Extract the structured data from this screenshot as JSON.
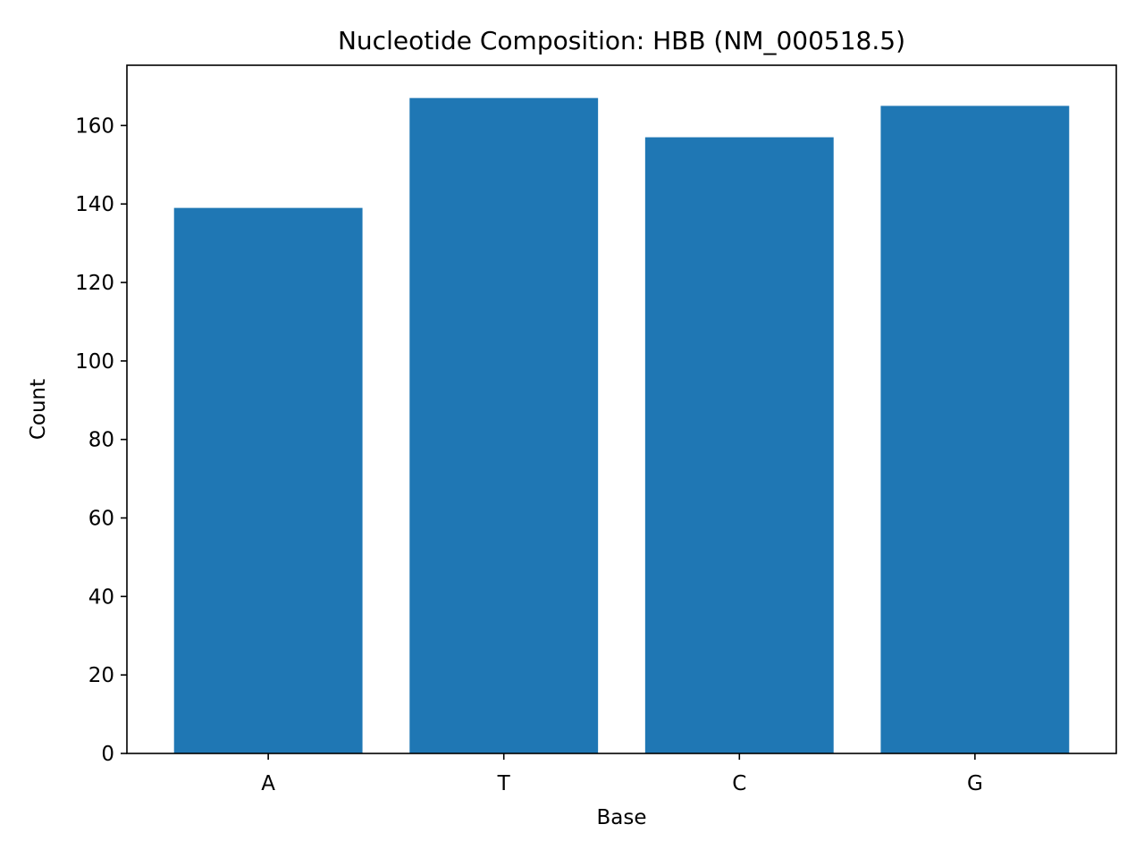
{
  "chart_data": {
    "type": "bar",
    "title": "Nucleotide Composition: HBB (NM_000518.5)",
    "xlabel": "Base",
    "ylabel": "Count",
    "categories": [
      "A",
      "T",
      "C",
      "G"
    ],
    "values": [
      139,
      167,
      157,
      165
    ],
    "ylim": [
      0,
      175.35
    ],
    "yticks": [
      0,
      20,
      40,
      60,
      80,
      100,
      120,
      140,
      160
    ],
    "bar_color": "#1f77b4",
    "grid": false,
    "legend": false
  }
}
